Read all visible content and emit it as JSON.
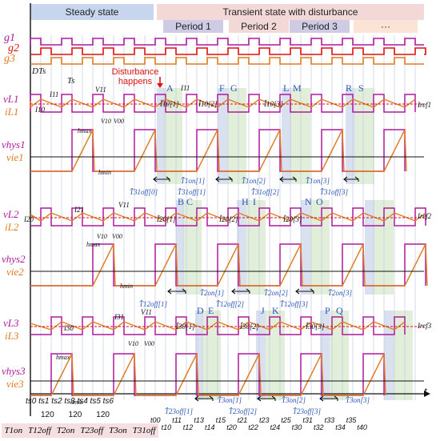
{
  "headers": {
    "steady": "Steady state",
    "transient": "Transient state with disturbance",
    "periods": [
      "Period 1",
      "Period 2",
      "Period 3",
      "···"
    ]
  },
  "gates": [
    "g1",
    "g2",
    "g3"
  ],
  "disturbance": "Disturbance happens",
  "left_labels": {
    "vL1": "vL1",
    "iL1": "iL1",
    "vhys1": "vhys1",
    "vie1": "vie1",
    "vL2": "vL2",
    "iL2": "iL2",
    "vhys2": "vhys2",
    "vie2": "vie2",
    "vL3": "vL3",
    "iL3": "iL3",
    "vhys3": "vhys3",
    "vie3": "vie3"
  },
  "timing_marks": {
    "DTs": "DTs",
    "Ts": "Ts"
  },
  "phase_annotations": {
    "I11": "I11",
    "I10": "I10",
    "V11": "V11",
    "V10": "V10",
    "V00": "V00",
    "I21": "I21",
    "I20": "I20",
    "I31": "I31",
    "I30": "I30",
    "hmax": "hmax",
    "hmin": "hmin",
    "Iref1": "Iref1",
    "Iref2": "Iref2",
    "Iref3": "Iref3"
  },
  "point_letters": [
    "A",
    "F",
    "G",
    "L",
    "M",
    "R",
    "S",
    "B",
    "C",
    "H",
    "I",
    "N",
    "O",
    "D",
    "E",
    "J",
    "K",
    "P",
    "Q"
  ],
  "estimates": {
    "i10": [
      "Î10[1]",
      "Î10[2]",
      "Î10[3]"
    ],
    "i20": [
      "Î20[1]",
      "Î20[2]",
      "Î20[3]"
    ],
    "i30": [
      "Î30[1]",
      "Î30[2]",
      "Î30[3]"
    ]
  },
  "durations": {
    "p1": [
      "T̂1on[1]",
      "T̂1on[2]",
      "T̂1on[3]"
    ],
    "p1off": [
      "T̂31off[0]",
      "T̂31off[1]",
      "T̂31off[2]",
      "T̂31off[3]"
    ],
    "p2": [
      "T̂2on[1]",
      "T̂2on[2]",
      "T̂2on[3]"
    ],
    "p2off": [
      "T̂12off[1]",
      "T̂12off[2]",
      "T̂12off[3]"
    ],
    "p3": [
      "T̂3on[1]",
      "T̂3on[2]",
      "T̂3on[3]"
    ],
    "p3off": [
      "T̂23off[1]",
      "T̂23off[2]",
      "T̂23off[3]"
    ]
  },
  "time_axis": "t",
  "steady_ticks": [
    "ts0",
    "ts1",
    "ts2",
    "ts3",
    "ts4",
    "ts5",
    "ts6"
  ],
  "phase_shift": [
    "120",
    "120",
    "120"
  ],
  "transient_ticks": [
    "t00",
    "t10",
    "t11",
    "t12",
    "t13",
    "t14",
    "t15",
    "t20",
    "t21",
    "t22",
    "t23",
    "t24",
    "t25",
    "t30",
    "t31",
    "t32",
    "t33",
    "t34",
    "t35",
    "t40"
  ],
  "legend": [
    "T1on",
    "T12off",
    "T2on",
    "T23off",
    "T3on",
    "T31off"
  ],
  "colors": {
    "magenta": "#b0199e",
    "orange": "#e07a1f",
    "red": "#dd1111",
    "blue": "#2b55b8",
    "green_shade": "#d9ead0",
    "blue_shade": "#cfd9ee",
    "steady_bg": "#c7d6ee",
    "transient_bg": "#f3d8d8",
    "period_bg": "#cfcbe4"
  }
}
